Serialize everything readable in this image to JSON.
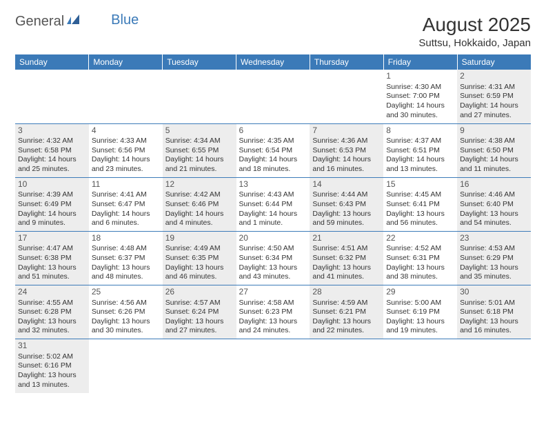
{
  "logo": {
    "part1": "General",
    "part2": "Blue"
  },
  "title": "August 2025",
  "location": "Suttsu, Hokkaido, Japan",
  "colors": {
    "header_bg": "#3b7ab8",
    "alt_cell_bg": "#ededed",
    "border": "#3b7ab8",
    "text": "#333333",
    "daynum": "#555555"
  },
  "day_headers": [
    "Sunday",
    "Monday",
    "Tuesday",
    "Wednesday",
    "Thursday",
    "Friday",
    "Saturday"
  ],
  "weeks": [
    [
      null,
      null,
      null,
      null,
      null,
      {
        "n": "1",
        "alt": false,
        "sr": "Sunrise: 4:30 AM",
        "ss": "Sunset: 7:00 PM",
        "d1": "Daylight: 14 hours",
        "d2": "and 30 minutes."
      },
      {
        "n": "2",
        "alt": true,
        "sr": "Sunrise: 4:31 AM",
        "ss": "Sunset: 6:59 PM",
        "d1": "Daylight: 14 hours",
        "d2": "and 27 minutes."
      }
    ],
    [
      {
        "n": "3",
        "alt": true,
        "sr": "Sunrise: 4:32 AM",
        "ss": "Sunset: 6:58 PM",
        "d1": "Daylight: 14 hours",
        "d2": "and 25 minutes."
      },
      {
        "n": "4",
        "alt": false,
        "sr": "Sunrise: 4:33 AM",
        "ss": "Sunset: 6:56 PM",
        "d1": "Daylight: 14 hours",
        "d2": "and 23 minutes."
      },
      {
        "n": "5",
        "alt": true,
        "sr": "Sunrise: 4:34 AM",
        "ss": "Sunset: 6:55 PM",
        "d1": "Daylight: 14 hours",
        "d2": "and 21 minutes."
      },
      {
        "n": "6",
        "alt": false,
        "sr": "Sunrise: 4:35 AM",
        "ss": "Sunset: 6:54 PM",
        "d1": "Daylight: 14 hours",
        "d2": "and 18 minutes."
      },
      {
        "n": "7",
        "alt": true,
        "sr": "Sunrise: 4:36 AM",
        "ss": "Sunset: 6:53 PM",
        "d1": "Daylight: 14 hours",
        "d2": "and 16 minutes."
      },
      {
        "n": "8",
        "alt": false,
        "sr": "Sunrise: 4:37 AM",
        "ss": "Sunset: 6:51 PM",
        "d1": "Daylight: 14 hours",
        "d2": "and 13 minutes."
      },
      {
        "n": "9",
        "alt": true,
        "sr": "Sunrise: 4:38 AM",
        "ss": "Sunset: 6:50 PM",
        "d1": "Daylight: 14 hours",
        "d2": "and 11 minutes."
      }
    ],
    [
      {
        "n": "10",
        "alt": true,
        "sr": "Sunrise: 4:39 AM",
        "ss": "Sunset: 6:49 PM",
        "d1": "Daylight: 14 hours",
        "d2": "and 9 minutes."
      },
      {
        "n": "11",
        "alt": false,
        "sr": "Sunrise: 4:41 AM",
        "ss": "Sunset: 6:47 PM",
        "d1": "Daylight: 14 hours",
        "d2": "and 6 minutes."
      },
      {
        "n": "12",
        "alt": true,
        "sr": "Sunrise: 4:42 AM",
        "ss": "Sunset: 6:46 PM",
        "d1": "Daylight: 14 hours",
        "d2": "and 4 minutes."
      },
      {
        "n": "13",
        "alt": false,
        "sr": "Sunrise: 4:43 AM",
        "ss": "Sunset: 6:44 PM",
        "d1": "Daylight: 14 hours",
        "d2": "and 1 minute."
      },
      {
        "n": "14",
        "alt": true,
        "sr": "Sunrise: 4:44 AM",
        "ss": "Sunset: 6:43 PM",
        "d1": "Daylight: 13 hours",
        "d2": "and 59 minutes."
      },
      {
        "n": "15",
        "alt": false,
        "sr": "Sunrise: 4:45 AM",
        "ss": "Sunset: 6:41 PM",
        "d1": "Daylight: 13 hours",
        "d2": "and 56 minutes."
      },
      {
        "n": "16",
        "alt": true,
        "sr": "Sunrise: 4:46 AM",
        "ss": "Sunset: 6:40 PM",
        "d1": "Daylight: 13 hours",
        "d2": "and 54 minutes."
      }
    ],
    [
      {
        "n": "17",
        "alt": true,
        "sr": "Sunrise: 4:47 AM",
        "ss": "Sunset: 6:38 PM",
        "d1": "Daylight: 13 hours",
        "d2": "and 51 minutes."
      },
      {
        "n": "18",
        "alt": false,
        "sr": "Sunrise: 4:48 AM",
        "ss": "Sunset: 6:37 PM",
        "d1": "Daylight: 13 hours",
        "d2": "and 48 minutes."
      },
      {
        "n": "19",
        "alt": true,
        "sr": "Sunrise: 4:49 AM",
        "ss": "Sunset: 6:35 PM",
        "d1": "Daylight: 13 hours",
        "d2": "and 46 minutes."
      },
      {
        "n": "20",
        "alt": false,
        "sr": "Sunrise: 4:50 AM",
        "ss": "Sunset: 6:34 PM",
        "d1": "Daylight: 13 hours",
        "d2": "and 43 minutes."
      },
      {
        "n": "21",
        "alt": true,
        "sr": "Sunrise: 4:51 AM",
        "ss": "Sunset: 6:32 PM",
        "d1": "Daylight: 13 hours",
        "d2": "and 41 minutes."
      },
      {
        "n": "22",
        "alt": false,
        "sr": "Sunrise: 4:52 AM",
        "ss": "Sunset: 6:31 PM",
        "d1": "Daylight: 13 hours",
        "d2": "and 38 minutes."
      },
      {
        "n": "23",
        "alt": true,
        "sr": "Sunrise: 4:53 AM",
        "ss": "Sunset: 6:29 PM",
        "d1": "Daylight: 13 hours",
        "d2": "and 35 minutes."
      }
    ],
    [
      {
        "n": "24",
        "alt": true,
        "sr": "Sunrise: 4:55 AM",
        "ss": "Sunset: 6:28 PM",
        "d1": "Daylight: 13 hours",
        "d2": "and 32 minutes."
      },
      {
        "n": "25",
        "alt": false,
        "sr": "Sunrise: 4:56 AM",
        "ss": "Sunset: 6:26 PM",
        "d1": "Daylight: 13 hours",
        "d2": "and 30 minutes."
      },
      {
        "n": "26",
        "alt": true,
        "sr": "Sunrise: 4:57 AM",
        "ss": "Sunset: 6:24 PM",
        "d1": "Daylight: 13 hours",
        "d2": "and 27 minutes."
      },
      {
        "n": "27",
        "alt": false,
        "sr": "Sunrise: 4:58 AM",
        "ss": "Sunset: 6:23 PM",
        "d1": "Daylight: 13 hours",
        "d2": "and 24 minutes."
      },
      {
        "n": "28",
        "alt": true,
        "sr": "Sunrise: 4:59 AM",
        "ss": "Sunset: 6:21 PM",
        "d1": "Daylight: 13 hours",
        "d2": "and 22 minutes."
      },
      {
        "n": "29",
        "alt": false,
        "sr": "Sunrise: 5:00 AM",
        "ss": "Sunset: 6:19 PM",
        "d1": "Daylight: 13 hours",
        "d2": "and 19 minutes."
      },
      {
        "n": "30",
        "alt": true,
        "sr": "Sunrise: 5:01 AM",
        "ss": "Sunset: 6:18 PM",
        "d1": "Daylight: 13 hours",
        "d2": "and 16 minutes."
      }
    ],
    [
      {
        "n": "31",
        "alt": true,
        "sr": "Sunrise: 5:02 AM",
        "ss": "Sunset: 6:16 PM",
        "d1": "Daylight: 13 hours",
        "d2": "and 13 minutes."
      },
      null,
      null,
      null,
      null,
      null,
      null
    ]
  ]
}
